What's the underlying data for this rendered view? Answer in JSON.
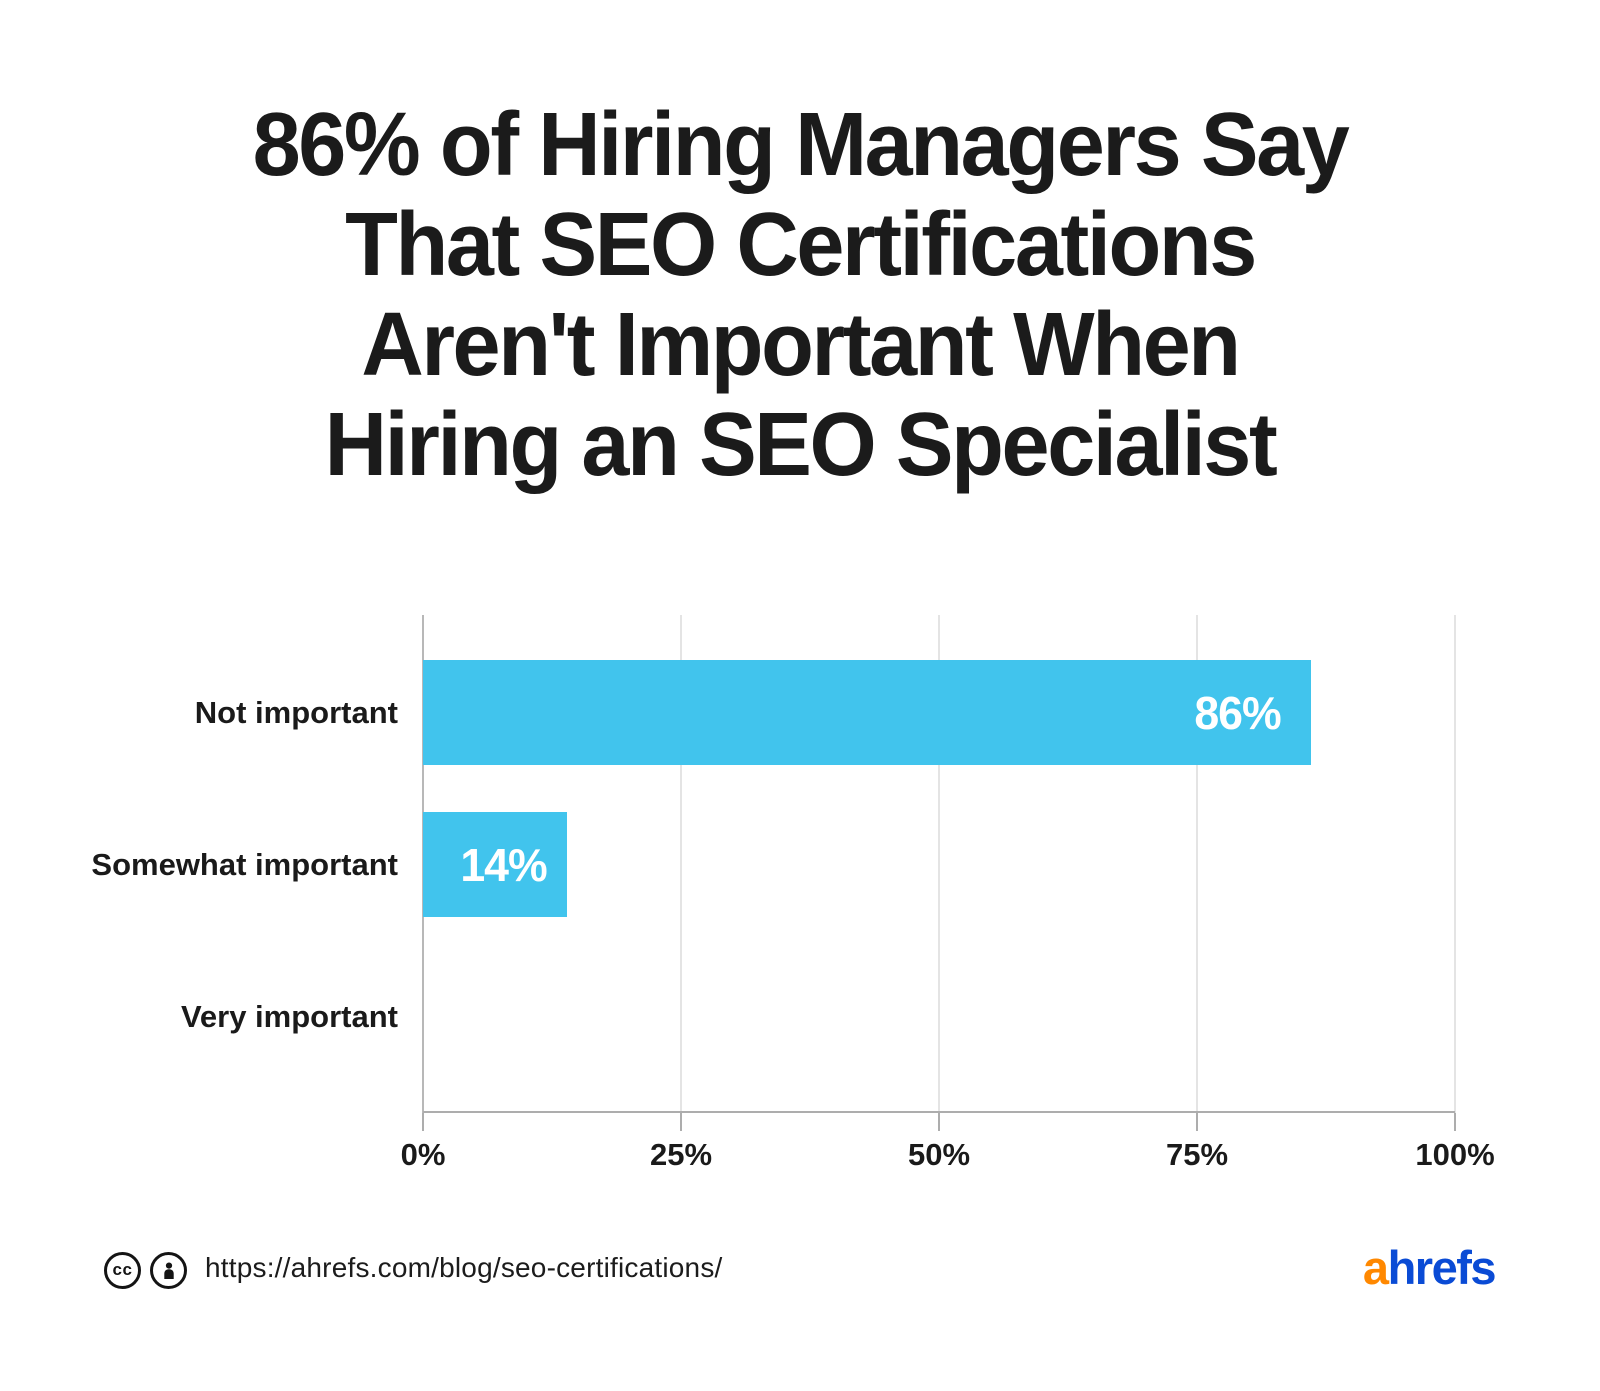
{
  "title": {
    "lines": [
      "86% of Hiring Managers Say",
      "That SEO Certifications",
      "Aren't Important When",
      "Hiring an SEO Specialist"
    ]
  },
  "chart_data": {
    "type": "bar",
    "orientation": "horizontal",
    "title": "86% of Hiring Managers Say That SEO Certifications Aren't Important When Hiring an SEO Specialist",
    "categories": [
      "Not important",
      "Somewhat important",
      "Very important"
    ],
    "values": [
      86,
      14,
      0
    ],
    "value_labels": [
      "86%",
      "14%",
      ""
    ],
    "x_tick_labels": [
      "0%",
      "25%",
      "50%",
      "75%",
      "100%"
    ],
    "x_tick_values": [
      0,
      25,
      50,
      75,
      100
    ],
    "xlim": [
      0,
      100
    ],
    "grid": true,
    "legend": false,
    "bar_color": "#41C4ED",
    "value_label_color": "#FFFFFF"
  },
  "footer": {
    "license": {
      "cc_icon": "cc-icon",
      "cc_text": "cc",
      "attribution_icon": "attribution-person-icon"
    },
    "url": "https://ahrefs.com/blog/seo-certifications/",
    "logo": {
      "first_letter": "a",
      "rest": "hrefs"
    }
  },
  "colors": {
    "bar": "#41C4ED",
    "title_text": "#1B1B1B",
    "label_text": "#1A1A1A",
    "value_text": "#FFFFFF",
    "gridline": "#E4E4E4",
    "axis_line": "#ADADAD",
    "logo_orange": "#FF8800",
    "logo_blue": "#0A4BD5",
    "icon_black": "#141414",
    "background": "#FFFFFF"
  }
}
